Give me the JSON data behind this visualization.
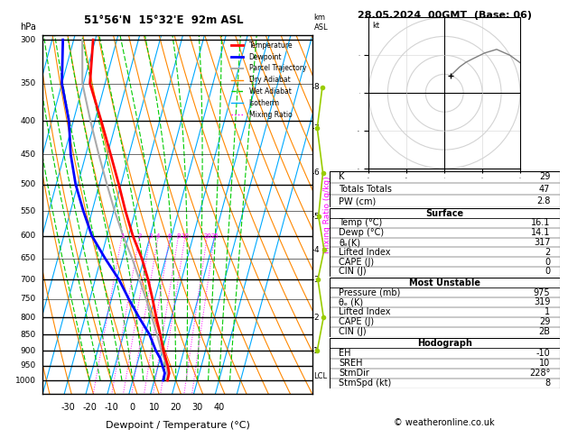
{
  "title_left": "51°56'N  15°32'E  92m ASL",
  "title_right": "28.05.2024  00GMT  (Base: 06)",
  "xlabel": "Dewpoint / Temperature (°C)",
  "ylabel_left": "hPa",
  "pressure_levels": [
    300,
    350,
    400,
    450,
    500,
    550,
    600,
    650,
    700,
    750,
    800,
    850,
    900,
    950,
    1000
  ],
  "isotherm_color": "#00aaff",
  "dry_adiabat_color": "#ff8800",
  "wet_adiabat_color": "#00cc00",
  "mixing_ratio_color": "#ff00ff",
  "temp_color": "#ff0000",
  "dewpoint_color": "#0000ff",
  "parcel_color": "#aaaaaa",
  "temperature_profile": {
    "pressure": [
      1000,
      975,
      950,
      925,
      900,
      850,
      800,
      750,
      700,
      650,
      600,
      550,
      500,
      450,
      400,
      350,
      300
    ],
    "temp": [
      16.1,
      16.0,
      14.5,
      12.5,
      10.5,
      7.0,
      3.0,
      -1.0,
      -5.5,
      -11.0,
      -18.0,
      -24.5,
      -31.0,
      -38.5,
      -47.0,
      -57.0,
      -61.0
    ]
  },
  "dewpoint_profile": {
    "pressure": [
      1000,
      975,
      950,
      925,
      900,
      850,
      800,
      750,
      700,
      650,
      600,
      550,
      500,
      450,
      400,
      350,
      300
    ],
    "temp": [
      14.1,
      14.0,
      12.0,
      10.0,
      7.0,
      2.0,
      -5.0,
      -12.0,
      -19.0,
      -28.0,
      -37.0,
      -44.0,
      -51.0,
      -57.0,
      -62.0,
      -70.0,
      -75.0
    ]
  },
  "parcel_profile": {
    "pressure": [
      1000,
      975,
      950,
      925,
      900,
      850,
      800,
      750,
      700,
      650,
      600,
      550,
      500,
      450,
      400,
      350,
      300
    ],
    "temp": [
      16.1,
      15.2,
      13.8,
      11.8,
      9.5,
      5.5,
      1.0,
      -4.0,
      -9.5,
      -15.5,
      -22.5,
      -29.5,
      -36.5,
      -44.0,
      -52.0,
      -60.5,
      -66.0
    ]
  },
  "mixing_ratio_lines": [
    1,
    2,
    3,
    4,
    6,
    8,
    10,
    20,
    25
  ],
  "km_ticks": [
    1,
    2,
    3,
    4,
    5,
    6,
    7,
    8
  ],
  "km_pressures": [
    900,
    800,
    700,
    630,
    560,
    480,
    410,
    355
  ],
  "lcl_pressure": 985,
  "wind_profile": {
    "pressure": [
      1000,
      975,
      950,
      925,
      900,
      850,
      800,
      750,
      700
    ],
    "direction": [
      200,
      210,
      215,
      220,
      225,
      230,
      240,
      250,
      260
    ],
    "speed": [
      5,
      8,
      10,
      12,
      15,
      18,
      20,
      22,
      25
    ]
  },
  "stats": {
    "K": 29,
    "Totals_Totals": 47,
    "PW_cm": 2.8,
    "Surface_Temp": 16.1,
    "Surface_Dewp": 14.1,
    "Surface_theta_e": 317,
    "Surface_LI": 2,
    "Surface_CAPE": 0,
    "Surface_CIN": 0,
    "MU_Pressure": 975,
    "MU_theta_e": 319,
    "MU_LI": 1,
    "MU_CAPE": 29,
    "MU_CIN": "2B",
    "Hodo_EH": -10,
    "Hodo_SREH": 10,
    "StmDir": "228°",
    "StmSpd": 8
  },
  "legend_entries": [
    {
      "label": "Temperature",
      "color": "#ff0000",
      "lw": 2,
      "ls": "-"
    },
    {
      "label": "Dewpoint",
      "color": "#0000ff",
      "lw": 2,
      "ls": "-"
    },
    {
      "label": "Parcel Trajectory",
      "color": "#aaaaaa",
      "lw": 1.5,
      "ls": "-"
    },
    {
      "label": "Dry Adiabat",
      "color": "#ff8800",
      "lw": 1,
      "ls": "-"
    },
    {
      "label": "Wet Adiabat",
      "color": "#00cc00",
      "lw": 1,
      "ls": "--"
    },
    {
      "label": "Isotherm",
      "color": "#00aaff",
      "lw": 1,
      "ls": "-"
    },
    {
      "label": "Mixing Ratio",
      "color": "#ff00ff",
      "lw": 1,
      "ls": ":"
    }
  ],
  "pbot": 1050,
  "ptop": 295,
  "skew_deg": 45,
  "T_axis_min": -40,
  "T_axis_max": 40
}
